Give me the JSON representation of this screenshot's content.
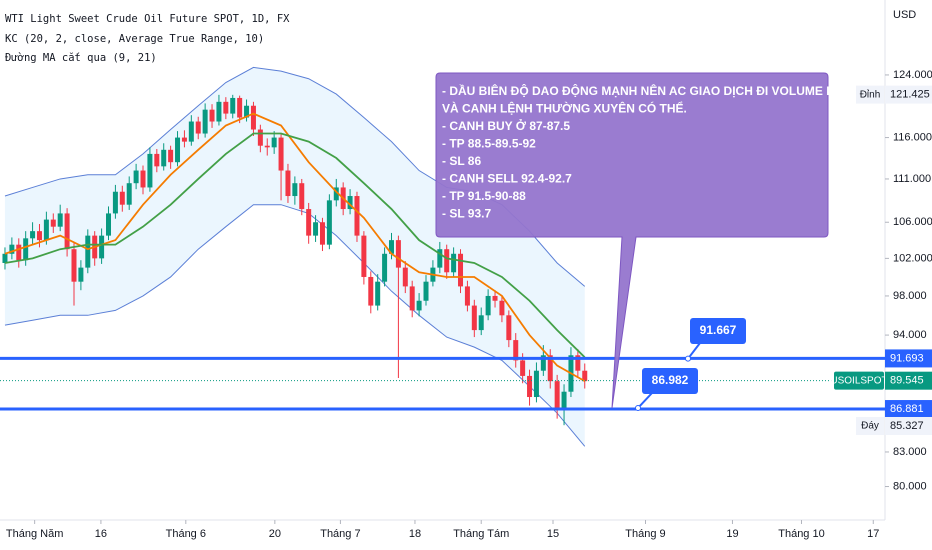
{
  "chart_data": {
    "type": "candlestick",
    "header": [
      "WTI Light Sweet Crude Oil Future SPOT, 1D, FX",
      "KC (20, 2, close, Average True Range, 10)",
      "Đường MA cắt qua (9, 21)"
    ],
    "currency": "USD",
    "log_scale": true,
    "ylim": [
      77.2,
      134.3
    ],
    "yticks": [
      {
        "value": 124,
        "label": "124.000"
      },
      {
        "value": 116,
        "label": "116.000"
      },
      {
        "value": 111,
        "label": "111.000"
      },
      {
        "value": 106,
        "label": "106.000"
      },
      {
        "value": 102,
        "label": "102.000"
      },
      {
        "value": 98,
        "label": "98.000"
      },
      {
        "value": 94,
        "label": "94.000"
      },
      {
        "value": 83,
        "label": "83.000"
      },
      {
        "value": 80,
        "label": "80.000"
      }
    ],
    "xlim": [
      -0.72,
      127.5
    ],
    "xticks": [
      {
        "value": 4.3,
        "label": "Tháng Năm"
      },
      {
        "value": 13.9,
        "label": "16"
      },
      {
        "value": 26.2,
        "label": "Tháng 6"
      },
      {
        "value": 39.1,
        "label": "20"
      },
      {
        "value": 48.6,
        "label": "Tháng 7"
      },
      {
        "value": 59.4,
        "label": "18"
      },
      {
        "value": 69,
        "label": "Tháng Tám"
      },
      {
        "value": 79.4,
        "label": "15"
      },
      {
        "value": 92.8,
        "label": "Tháng 9"
      },
      {
        "value": 105.4,
        "label": "19"
      },
      {
        "value": 115.4,
        "label": "Tháng 10"
      },
      {
        "value": 125.8,
        "label": "17"
      }
    ],
    "up_color": "#089981",
    "down_color": "#f23645",
    "candles": [
      [
        101.5,
        103.2,
        100.8,
        102.5
      ],
      [
        102.5,
        104.3,
        101.9,
        103.5
      ],
      [
        103.5,
        104.2,
        101.0,
        101.8
      ],
      [
        101.8,
        105.0,
        101.2,
        104.2
      ],
      [
        104.2,
        106.0,
        103.5,
        105.0
      ],
      [
        105.0,
        105.8,
        103.2,
        104.0
      ],
      [
        104.0,
        107.2,
        103.5,
        106.3
      ],
      [
        106.3,
        107.0,
        104.8,
        105.5
      ],
      [
        105.5,
        108.0,
        105.0,
        107.0
      ],
      [
        107.0,
        107.6,
        102.2,
        103.0
      ],
      [
        103.0,
        103.8,
        97.0,
        99.5
      ],
      [
        99.5,
        101.8,
        98.6,
        101.0
      ],
      [
        101.0,
        105.2,
        100.4,
        104.5
      ],
      [
        104.5,
        105.0,
        101.2,
        102.0
      ],
      [
        102.0,
        105.3,
        101.4,
        104.5
      ],
      [
        104.5,
        107.8,
        104.0,
        107.0
      ],
      [
        107.0,
        110.3,
        106.4,
        109.5
      ],
      [
        109.5,
        110.2,
        107.2,
        108.0
      ],
      [
        108.0,
        111.3,
        107.4,
        110.5
      ],
      [
        110.5,
        112.8,
        109.8,
        112.0
      ],
      [
        112.0,
        112.6,
        109.2,
        110.0
      ],
      [
        110.0,
        114.8,
        109.5,
        114.0
      ],
      [
        114.0,
        114.6,
        111.8,
        112.5
      ],
      [
        112.5,
        115.3,
        112.0,
        114.5
      ],
      [
        114.5,
        115.0,
        112.2,
        113.0
      ],
      [
        113.0,
        116.8,
        112.5,
        116.0
      ],
      [
        116.0,
        116.9,
        114.8,
        115.5
      ],
      [
        115.5,
        118.8,
        115.0,
        118.0
      ],
      [
        118.0,
        118.6,
        115.8,
        116.5
      ],
      [
        116.5,
        120.3,
        116.0,
        119.5
      ],
      [
        119.5,
        120.2,
        117.2,
        118.0
      ],
      [
        118.0,
        121.4,
        117.5,
        120.5
      ],
      [
        120.5,
        121.1,
        118.3,
        119.0
      ],
      [
        119.0,
        121.4,
        118.4,
        121.0
      ],
      [
        121.0,
        121.3,
        117.8,
        118.5
      ],
      [
        118.5,
        120.8,
        118.0,
        120.0
      ],
      [
        120.0,
        120.5,
        116.2,
        117.0
      ],
      [
        117.0,
        117.6,
        114.2,
        115.0
      ],
      [
        115.0,
        115.9,
        113.8,
        114.8
      ],
      [
        114.8,
        116.8,
        114.0,
        116.0
      ],
      [
        116.0,
        116.4,
        108.5,
        112.0
      ],
      [
        112.0,
        112.8,
        108.2,
        109.0
      ],
      [
        109.0,
        111.3,
        108.0,
        110.5
      ],
      [
        110.5,
        111.0,
        106.8,
        107.5
      ],
      [
        107.5,
        108.2,
        103.6,
        104.5
      ],
      [
        104.5,
        106.8,
        103.8,
        106.0
      ],
      [
        106.0,
        106.5,
        102.8,
        103.5
      ],
      [
        103.5,
        109.2,
        103.0,
        108.5
      ],
      [
        108.5,
        111.0,
        107.8,
        110.0
      ],
      [
        110.0,
        110.6,
        106.8,
        107.5
      ],
      [
        107.5,
        109.8,
        106.9,
        109.0
      ],
      [
        109.0,
        109.5,
        103.8,
        104.5
      ],
      [
        104.5,
        105.0,
        99.2,
        100.0
      ],
      [
        100.0,
        100.6,
        96.2,
        97.0
      ],
      [
        97.0,
        100.3,
        96.5,
        99.5
      ],
      [
        99.5,
        103.2,
        99.0,
        102.5
      ],
      [
        102.5,
        104.8,
        101.9,
        104.0
      ],
      [
        104.0,
        104.5,
        89.8,
        101.0
      ],
      [
        101.0,
        101.7,
        98.3,
        99.0
      ],
      [
        99.0,
        99.6,
        95.8,
        96.5
      ],
      [
        96.5,
        98.3,
        95.9,
        97.5
      ],
      [
        97.5,
        100.2,
        97.0,
        99.5
      ],
      [
        99.5,
        101.8,
        99.0,
        101.0
      ],
      [
        101.0,
        103.8,
        100.4,
        103.0
      ],
      [
        103.0,
        103.5,
        99.8,
        100.5
      ],
      [
        100.5,
        103.2,
        100.0,
        102.5
      ],
      [
        102.5,
        103.0,
        98.3,
        99.0
      ],
      [
        99.0,
        99.6,
        96.4,
        97.0
      ],
      [
        97.0,
        97.6,
        93.8,
        94.5
      ],
      [
        94.5,
        96.8,
        94.0,
        96.0
      ],
      [
        96.0,
        98.7,
        95.5,
        98.0
      ],
      [
        98.0,
        98.6,
        96.8,
        97.5
      ],
      [
        97.5,
        98.0,
        95.3,
        96.0
      ],
      [
        96.0,
        96.5,
        92.8,
        93.5
      ],
      [
        93.5,
        94.2,
        90.8,
        91.5
      ],
      [
        91.5,
        92.2,
        89.3,
        90.0
      ],
      [
        90.0,
        90.6,
        87.2,
        88.0
      ],
      [
        88.0,
        91.3,
        87.5,
        90.5
      ],
      [
        90.5,
        93.0,
        90.0,
        92.0
      ],
      [
        92.0,
        92.6,
        88.8,
        89.5
      ],
      [
        89.5,
        90.1,
        86.0,
        86.8
      ],
      [
        86.8,
        89.2,
        85.4,
        88.5
      ],
      [
        88.5,
        92.8,
        88.0,
        92.0
      ],
      [
        92.0,
        92.6,
        89.8,
        90.5
      ],
      [
        90.5,
        91.2,
        88.8,
        89.5
      ]
    ],
    "line_x": [
      0,
      4,
      8,
      12,
      16,
      20,
      24,
      28,
      32,
      36,
      40,
      44,
      48,
      52,
      56,
      60,
      64,
      68,
      72,
      76,
      80,
      84
    ],
    "band": {
      "color": "#5b7fd6",
      "fill": "rgba(33,150,243,0.09)",
      "upper": [
        109.0,
        110.0,
        111.0,
        111.5,
        111.5,
        114.0,
        117.0,
        120.0,
        123.0,
        125.0,
        124.5,
        123.5,
        121.5,
        118.5,
        115.5,
        112.0,
        110.0,
        109.5,
        108.0,
        105.0,
        101.5,
        99.0
      ],
      "lower": [
        95.0,
        95.5,
        96.0,
        96.0,
        96.5,
        98.0,
        100.0,
        103.0,
        105.5,
        108.0,
        108.0,
        107.0,
        104.5,
        101.5,
        98.5,
        96.0,
        93.8,
        92.8,
        91.5,
        89.0,
        86.5,
        83.5
      ]
    },
    "lines": [
      {
        "color": "#f57c00",
        "values": [
          102.5,
          103.5,
          104.5,
          103.0,
          104.0,
          108.0,
          111.5,
          114.5,
          117.5,
          119.0,
          117.5,
          113.0,
          109.5,
          106.5,
          102.5,
          100.5,
          100.0,
          100.0,
          98.0,
          94.0,
          91.0,
          89.5
        ]
      },
      {
        "color": "#43a047",
        "values": [
          101.5,
          102.0,
          103.0,
          103.5,
          103.5,
          105.5,
          108.0,
          111.0,
          114.0,
          116.5,
          116.5,
          115.5,
          113.5,
          110.5,
          107.5,
          104.0,
          102.0,
          101.5,
          100.0,
          97.5,
          94.5,
          91.8
        ]
      }
    ],
    "hlines": [
      {
        "value": 91.693,
        "color": "#2962ff"
      },
      {
        "value": 86.881,
        "color": "#2962ff"
      }
    ],
    "callouts": [
      {
        "label": "91.667",
        "value": 91.667
      },
      {
        "label": "86.982",
        "value": 86.982
      }
    ],
    "last": {
      "label": "USOILSPOT",
      "value": 89.545,
      "color": "#089981"
    },
    "extremes": [
      {
        "label": "Đỉnh",
        "value": 121.425
      },
      {
        "label": "Đáy",
        "value": 85.327
      }
    ],
    "annotation": [
      "- DẦU BIÊN ĐỘ DAO ĐỘNG MẠNH NÊN AC GIAO DỊCH ĐI VOLUME NHỎ",
      "VÀ CANH LỆNH THƯỜNG XUYÊN CÓ THỂ.",
      "- CANH BUY Ở 87-87.5",
      "- TP 88.5-89.5-92",
      "- SL 86",
      "- CANH SELL 92.4-92.7",
      "- TP 91.5-90-88",
      "- SL 93.7"
    ]
  }
}
